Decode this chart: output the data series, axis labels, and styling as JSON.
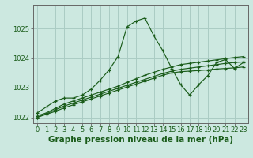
{
  "title": "Graphe pression niveau de la mer (hPa)",
  "bg_color": "#cce8e0",
  "grid_color": "#aaccc4",
  "line_color": "#1a5c1a",
  "x_labels": [
    "0",
    "1",
    "2",
    "3",
    "4",
    "5",
    "6",
    "7",
    "8",
    "9",
    "10",
    "11",
    "12",
    "13",
    "14",
    "15",
    "16",
    "17",
    "18",
    "19",
    "20",
    "21",
    "22",
    "23"
  ],
  "xlim": [
    -0.5,
    23.5
  ],
  "ylim": [
    1021.8,
    1025.8
  ],
  "yticks": [
    1022,
    1023,
    1024,
    1025
  ],
  "series": [
    [
      1022.15,
      1022.35,
      1022.55,
      1022.65,
      1022.65,
      1022.75,
      1022.95,
      1023.25,
      1023.6,
      1024.05,
      1025.05,
      1025.25,
      1025.35,
      1024.75,
      1024.25,
      1023.65,
      1023.1,
      1022.75,
      1023.1,
      1023.4,
      1023.85,
      1023.95,
      1023.65,
      1023.85
    ],
    [
      1022.05,
      1022.15,
      1022.3,
      1022.45,
      1022.55,
      1022.65,
      1022.75,
      1022.85,
      1022.95,
      1023.05,
      1023.18,
      1023.3,
      1023.42,
      1023.52,
      1023.62,
      1023.7,
      1023.78,
      1023.82,
      1023.86,
      1023.9,
      1023.94,
      1023.98,
      1024.02,
      1024.05
    ],
    [
      1022.0,
      1022.12,
      1022.25,
      1022.38,
      1022.48,
      1022.58,
      1022.68,
      1022.78,
      1022.88,
      1022.98,
      1023.08,
      1023.18,
      1023.28,
      1023.38,
      1023.48,
      1023.56,
      1023.62,
      1023.66,
      1023.7,
      1023.74,
      1023.78,
      1023.82,
      1023.85,
      1023.87
    ],
    [
      1022.0,
      1022.1,
      1022.2,
      1022.32,
      1022.42,
      1022.52,
      1022.62,
      1022.72,
      1022.82,
      1022.92,
      1023.02,
      1023.12,
      1023.22,
      1023.32,
      1023.42,
      1023.5,
      1023.54,
      1023.56,
      1023.58,
      1023.6,
      1023.63,
      1023.65,
      1023.67,
      1023.7
    ]
  ],
  "title_color": "#1a5c1a",
  "title_fontsize": 7.5,
  "tick_fontsize": 6,
  "axis_color": "#666666"
}
